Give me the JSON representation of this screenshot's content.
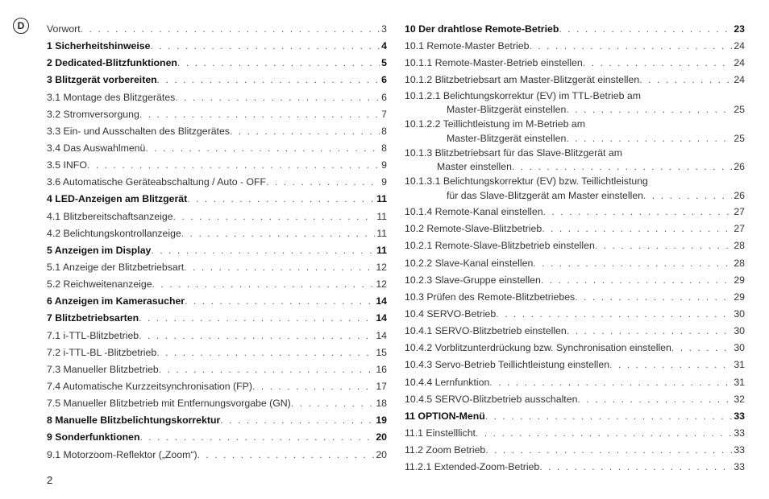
{
  "lang_badge": "D",
  "page_number": "2",
  "left": [
    {
      "label": "Vorwort",
      "page": "3",
      "bold": false
    },
    {
      "label": "1 Sicherheitshinweise",
      "page": "4",
      "bold": true
    },
    {
      "label": "2 Dedicated-Blitzfunktionen",
      "page": "5",
      "bold": true
    },
    {
      "label": "3 Blitzgerät vorbereiten",
      "page": "6",
      "bold": true
    },
    {
      "label": "3.1 Montage des Blitzgerätes",
      "page": "6",
      "bold": false
    },
    {
      "label": "3.2 Stromversorgung",
      "page": "7",
      "bold": false
    },
    {
      "label": "3.3 Ein- und Ausschalten des Blitzgerätes",
      "page": "8",
      "bold": false
    },
    {
      "label": "3.4 Das Auswahlmenü",
      "page": "8",
      "bold": false
    },
    {
      "label": "3.5 INFO",
      "page": "9",
      "bold": false
    },
    {
      "label": "3.6 Automatische Geräteabschaltung / Auto - OFF",
      "page": "9",
      "bold": false
    },
    {
      "label": "4 LED-Anzeigen am Blitzgerät",
      "page": "11",
      "bold": true
    },
    {
      "label": "4.1 Blitzbereitschaftsanzeige",
      "page": "11",
      "bold": false
    },
    {
      "label": "4.2 Belichtungskontrollanzeige",
      "page": "11",
      "bold": false
    },
    {
      "label": "5 Anzeigen im Display",
      "page": "11",
      "bold": true
    },
    {
      "label": "5.1 Anzeige der Blitzbetriebsart",
      "page": "12",
      "bold": false
    },
    {
      "label": "5.2 Reichweitenanzeige",
      "page": "12",
      "bold": false
    },
    {
      "label": "6 Anzeigen im Kamerasucher",
      "page": "14",
      "bold": true
    },
    {
      "label": "7 Blitzbetriebsarten",
      "page": "14",
      "bold": true
    },
    {
      "label": "7.1 i-TTL-Blitzbetrieb",
      "page": "14",
      "bold": false
    },
    {
      "label": "7.2 i-TTL-BL -Blitzbetrieb",
      "page": "15",
      "bold": false
    },
    {
      "label": "7.3 Manueller Blitzbetrieb",
      "page": "16",
      "bold": false
    },
    {
      "label": "7.4  Automatische Kurzzeitsynchronisation (FP)",
      "page": "17",
      "bold": false
    },
    {
      "label": "7.5 Manueller Blitzbetrieb mit Entfernungsvorgabe (GN)",
      "page": "18",
      "bold": false
    },
    {
      "label": "8 Manuelle Blitzbelichtungskorrektur",
      "page": "19",
      "bold": true
    },
    {
      "label": "9 Sonderfunktionen",
      "page": "20",
      "bold": true
    },
    {
      "label": "9.1 Motorzoom-Reflektor („Zoom“)",
      "page": "20",
      "bold": false
    }
  ],
  "right": [
    {
      "type": "entry",
      "label": "10 Der drahtlose Remote-Betrieb",
      "page": "23",
      "bold": true
    },
    {
      "type": "entry",
      "label": "10.1 Remote-Master Betrieb",
      "page": "24",
      "bold": false
    },
    {
      "type": "entry",
      "label": "10.1.1 Remote-Master-Betrieb einstellen",
      "page": "24",
      "bold": false
    },
    {
      "type": "entry",
      "label": "10.1.2 Blitzbetriebsart am Master-Blitzgerät einstellen",
      "page": "24",
      "bold": false
    },
    {
      "type": "wrap",
      "line1": "10.1.2.1 Belichtungskorrektur (EV) im TTL-Betrieb am",
      "line2": "Master-Blitzgerät einstellen",
      "page": "25",
      "indent": 52
    },
    {
      "type": "wrap",
      "line1": "10.1.2.2 Teillichtleistung im M-Betrieb am",
      "line2": "Master-Blitzgerät einstellen",
      "page": "25",
      "indent": 52
    },
    {
      "type": "wrap",
      "line1": "10.1.3 Blitzbetriebsart für das Slave-Blitzgerät am",
      "line2": "Master einstellen",
      "page": "26",
      "indent": 40
    },
    {
      "type": "wrap",
      "line1": "10.1.3.1 Belichtungskorrektur (EV) bzw. Teillichtleistung",
      "line2": "für das Slave-Blitzgerät am Master einstellen",
      "page": "26",
      "indent": 52
    },
    {
      "type": "entry",
      "label": "10.1.4 Remote-Kanal einstellen",
      "page": "27",
      "bold": false
    },
    {
      "type": "entry",
      "label": "10.2 Remote-Slave-Blitzbetrieb",
      "page": "27",
      "bold": false
    },
    {
      "type": "entry",
      "label": "10.2.1 Remote-Slave-Blitzbetrieb einstellen",
      "page": "28",
      "bold": false
    },
    {
      "type": "entry",
      "label": "10.2.2 Slave-Kanal einstellen",
      "page": "28",
      "bold": false
    },
    {
      "type": "entry",
      "label": "10.2.3 Slave-Gruppe einstellen",
      "page": "29",
      "bold": false
    },
    {
      "type": "entry",
      "label": "10.3 Prüfen des Remote-Blitzbetriebes",
      "page": "29",
      "bold": false
    },
    {
      "type": "entry",
      "label": "10.4 SERVO-Betrieb",
      "page": "30",
      "bold": false
    },
    {
      "type": "entry",
      "label": "10.4.1 SERVO-Blitzbetrieb einstellen",
      "page": "30",
      "bold": false
    },
    {
      "type": "entry",
      "label": "10.4.2 Vorblitzunterdrückung bzw. Synchronisation einstellen",
      "page": "30",
      "bold": false
    },
    {
      "type": "entry",
      "label": "10.4.3 Servo-Betrieb Teillichtleistung einstellen",
      "page": "31",
      "bold": false
    },
    {
      "type": "entry",
      "label": "10.4.4 Lernfunktion",
      "page": "31",
      "bold": false
    },
    {
      "type": "entry",
      "label": "10.4.5 SERVO-Blitzbetrieb ausschalten",
      "page": "32",
      "bold": false
    },
    {
      "type": "entry",
      "label": "11 OPTION-Menü",
      "page": "33",
      "bold": true
    },
    {
      "type": "entry",
      "label": "11.1 Einstelllicht",
      "page": "33",
      "bold": false
    },
    {
      "type": "entry",
      "label": "11.2 Zoom Betrieb",
      "page": "33",
      "bold": false
    },
    {
      "type": "entry",
      "label": "11.2.1 Extended-Zoom-Betrieb",
      "page": "33",
      "bold": false
    }
  ]
}
